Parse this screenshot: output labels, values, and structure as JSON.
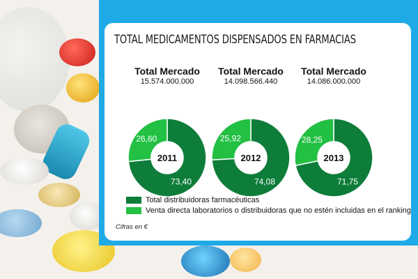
{
  "card": {
    "title": "TOTAL MEDICAMENTOS DISPENSADOS EN FARMACIAS",
    "footnote": "Cifras en €"
  },
  "colors": {
    "frame_blue": "#1eaae6",
    "dark_green": "#0e7d3a",
    "light_green": "#22c043"
  },
  "chart_data": {
    "type": "pie",
    "variant": "donut",
    "charts": [
      {
        "year": "2011",
        "market_label": "Total Mercado",
        "market_value": "15.574.000.000",
        "slices": [
          {
            "series": "Total distribuidoras farmacéuticas",
            "value": 73.4,
            "label": "73,40"
          },
          {
            "series": "Venta directa laboratorios o distribuidoras que no estén incluidas en el ranking",
            "value": 26.6,
            "label": "26,60"
          }
        ]
      },
      {
        "year": "2012",
        "market_label": "Total Mercado",
        "market_value": "14.098.566.440",
        "slices": [
          {
            "series": "Total distribuidoras farmacéuticas",
            "value": 74.08,
            "label": "74,08"
          },
          {
            "series": "Venta directa laboratorios o distribuidoras que no estén incluidas en el ranking",
            "value": 25.92,
            "label": "25,92"
          }
        ]
      },
      {
        "year": "2013",
        "market_label": "Total Mercado",
        "market_value": "14.086.000.000",
        "slices": [
          {
            "series": "Total distribuidoras farmacéuticas",
            "value": 71.75,
            "label": "71,75"
          },
          {
            "series": "Venta directa laboratorios o distribuidoras que no estén incluidas en el ranking",
            "value": 28.25,
            "label": "28,25"
          }
        ]
      }
    ],
    "legend": [
      {
        "label": "Total distribuidoras farmacéuticas",
        "color": "#0e7d3a"
      },
      {
        "label": "Venta directa laboratorios o distribuidoras que no estén incluidas en el ranking",
        "color": "#22c043"
      }
    ],
    "legend_position": "bottom-left"
  }
}
